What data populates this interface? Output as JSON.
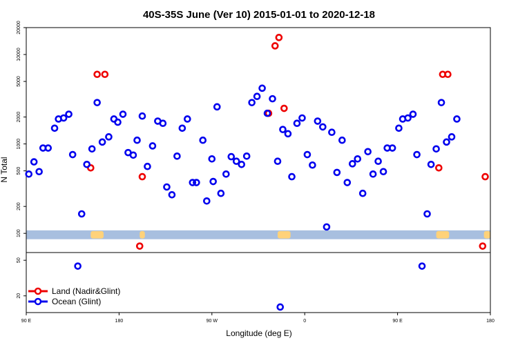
{
  "chart_data": {
    "type": "scatter",
    "title": "40S-35S June (Ver 10)   2015-01-01 to 2020-12-18",
    "xlabel": "Longitude (deg E)",
    "ylabel": "N Total",
    "yscale": "log",
    "ylim": [
      13,
      20000
    ],
    "grid": false,
    "legend_position": "bottom-left",
    "x_tick_labels": [
      "90 E",
      "180",
      "90 W",
      "0",
      "90 E",
      "180"
    ],
    "y_tick_labels": [
      "20",
      "50",
      "100",
      "200",
      "500",
      "1000",
      "2000",
      "5000",
      "10000",
      "20000"
    ],
    "map_strip": {
      "ocean_color": "#a8bfdf",
      "land_color": "#ffd27a"
    },
    "series": [
      {
        "name": "Land (Nadir&Glint)",
        "color": "#ee0000",
        "points": [
          {
            "x": 140,
            "y": 540
          },
          {
            "x": 145,
            "y": 6000
          },
          {
            "x": 151,
            "y": 6000
          },
          {
            "x": 178,
            "y": 72
          },
          {
            "x": 180,
            "y": 430
          },
          {
            "x": 278,
            "y": 2200
          },
          {
            "x": 283,
            "y": 12500
          },
          {
            "x": 286,
            "y": 15500
          },
          {
            "x": 290,
            "y": 2500
          },
          {
            "x": 410,
            "y": 540
          },
          {
            "x": 413,
            "y": 6000
          },
          {
            "x": 417,
            "y": 6000
          },
          {
            "x": 444,
            "y": 72
          },
          {
            "x": 446,
            "y": 430
          }
        ]
      },
      {
        "name": "Ocean (Glint)",
        "color": "#0000ee",
        "points": [
          {
            "x": 92,
            "y": 460
          },
          {
            "x": 96,
            "y": 630
          },
          {
            "x": 100,
            "y": 490
          },
          {
            "x": 103,
            "y": 900
          },
          {
            "x": 107,
            "y": 900
          },
          {
            "x": 112,
            "y": 1500
          },
          {
            "x": 115,
            "y": 1900
          },
          {
            "x": 119,
            "y": 1950
          },
          {
            "x": 123,
            "y": 2150
          },
          {
            "x": 126,
            "y": 760
          },
          {
            "x": 130,
            "y": 43
          },
          {
            "x": 133,
            "y": 165
          },
          {
            "x": 137,
            "y": 590
          },
          {
            "x": 141,
            "y": 880
          },
          {
            "x": 145,
            "y": 2900
          },
          {
            "x": 149,
            "y": 1050
          },
          {
            "x": 154,
            "y": 1200
          },
          {
            "x": 158,
            "y": 1900
          },
          {
            "x": 161,
            "y": 1750
          },
          {
            "x": 165,
            "y": 2150
          },
          {
            "x": 169,
            "y": 800
          },
          {
            "x": 173,
            "y": 750
          },
          {
            "x": 176,
            "y": 1100
          },
          {
            "x": 180,
            "y": 2050
          },
          {
            "x": 184,
            "y": 560
          },
          {
            "x": 188,
            "y": 950
          },
          {
            "x": 192,
            "y": 1800
          },
          {
            "x": 196,
            "y": 1700
          },
          {
            "x": 199,
            "y": 330
          },
          {
            "x": 203,
            "y": 270
          },
          {
            "x": 207,
            "y": 730
          },
          {
            "x": 211,
            "y": 1500
          },
          {
            "x": 215,
            "y": 1900
          },
          {
            "x": 219,
            "y": 370
          },
          {
            "x": 222,
            "y": 370
          },
          {
            "x": 227,
            "y": 1100
          },
          {
            "x": 230,
            "y": 230
          },
          {
            "x": 234,
            "y": 680
          },
          {
            "x": 238,
            "y": 2600
          },
          {
            "x": 241,
            "y": 280
          },
          {
            "x": 245,
            "y": 460
          },
          {
            "x": 249,
            "y": 720
          },
          {
            "x": 253,
            "y": 640
          },
          {
            "x": 257,
            "y": 590
          },
          {
            "x": 261,
            "y": 730
          },
          {
            "x": 265,
            "y": 2900
          },
          {
            "x": 269,
            "y": 3400
          },
          {
            "x": 273,
            "y": 4200
          },
          {
            "x": 277,
            "y": 2200
          },
          {
            "x": 281,
            "y": 3200
          },
          {
            "x": 285,
            "y": 640
          },
          {
            "x": 289,
            "y": 1450
          },
          {
            "x": 293,
            "y": 1300
          },
          {
            "x": 296,
            "y": 430
          },
          {
            "x": 300,
            "y": 1700
          },
          {
            "x": 304,
            "y": 1950
          },
          {
            "x": 308,
            "y": 760
          },
          {
            "x": 312,
            "y": 580
          },
          {
            "x": 316,
            "y": 1800
          },
          {
            "x": 320,
            "y": 1550
          },
          {
            "x": 323,
            "y": 118
          },
          {
            "x": 327,
            "y": 1350
          },
          {
            "x": 331,
            "y": 480
          },
          {
            "x": 335,
            "y": 1100
          },
          {
            "x": 339,
            "y": 370
          },
          {
            "x": 343,
            "y": 600
          },
          {
            "x": 347,
            "y": 680
          },
          {
            "x": 351,
            "y": 280
          },
          {
            "x": 355,
            "y": 820
          },
          {
            "x": 359,
            "y": 460
          },
          {
            "x": 363,
            "y": 640
          },
          {
            "x": 367,
            "y": 490
          },
          {
            "x": 370,
            "y": 900
          },
          {
            "x": 374,
            "y": 900
          },
          {
            "x": 379,
            "y": 1500
          },
          {
            "x": 382,
            "y": 1900
          },
          {
            "x": 386,
            "y": 1950
          },
          {
            "x": 390,
            "y": 2150
          },
          {
            "x": 393,
            "y": 760
          },
          {
            "x": 397,
            "y": 43
          },
          {
            "x": 401,
            "y": 165
          },
          {
            "x": 404,
            "y": 590
          },
          {
            "x": 408,
            "y": 880
          },
          {
            "x": 412,
            "y": 2900
          },
          {
            "x": 416,
            "y": 1050
          },
          {
            "x": 420,
            "y": 1200
          },
          {
            "x": 424,
            "y": 1900
          },
          {
            "x": 287,
            "y": 15
          },
          {
            "x": 235,
            "y": 380
          }
        ]
      }
    ]
  }
}
